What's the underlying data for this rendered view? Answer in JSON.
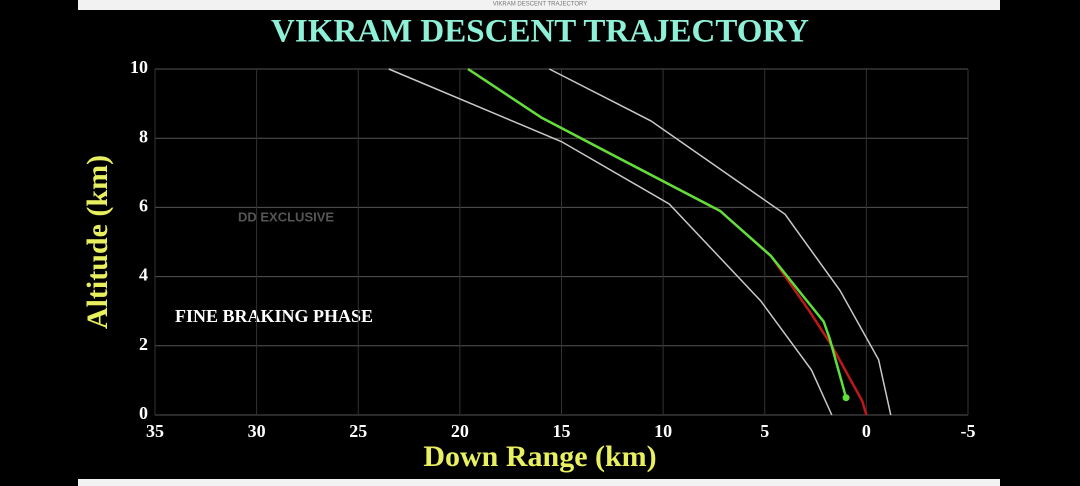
{
  "window_title": "VIKRAM DESCENT TRAJECTORY",
  "chart_data": {
    "type": "line",
    "title": "VIKRAM DESCENT TRAJECTORY",
    "x_label": "Down Range (km)",
    "y_label": "Altitude (km)",
    "annotations": [
      "DD EXCLUSIVE",
      "FINE BRAKING PHASE"
    ],
    "xlim": [
      35,
      -5
    ],
    "xticks": [
      35,
      30,
      25,
      20,
      15,
      10,
      5,
      0,
      -5
    ],
    "ylim": [
      0,
      10
    ],
    "yticks": [
      0,
      2,
      4,
      6,
      8,
      10
    ],
    "grid": true,
    "series": [
      {
        "color": "#c01818",
        "x": [
          19.6,
          16.0,
          12.1,
          7.2,
          4.7,
          2.8,
          1.7,
          0.2,
          0.0
        ],
        "values": [
          10,
          8.6,
          7.4,
          5.9,
          4.6,
          3.0,
          2.0,
          0.4,
          0
        ]
      },
      {
        "color": "#5ee03a",
        "x": [
          19.6,
          16.0,
          12.1,
          7.2,
          4.7,
          3.2,
          2.1,
          1.8,
          1.0
        ],
        "values": [
          10,
          8.6,
          7.4,
          5.9,
          4.6,
          3.5,
          2.7,
          2.2,
          0.5
        ]
      },
      {
        "color": "#c8c8c8",
        "x": [
          15.6,
          10.6,
          4.0,
          1.3,
          -0.6,
          -1.2
        ],
        "values": [
          10,
          8.5,
          5.8,
          3.6,
          1.6,
          0
        ]
      },
      {
        "color": "#c8c8c8",
        "x": [
          23.5,
          15.0,
          9.7,
          5.2,
          2.7,
          1.7
        ],
        "values": [
          10,
          7.9,
          6.1,
          3.3,
          1.3,
          0
        ]
      }
    ]
  }
}
